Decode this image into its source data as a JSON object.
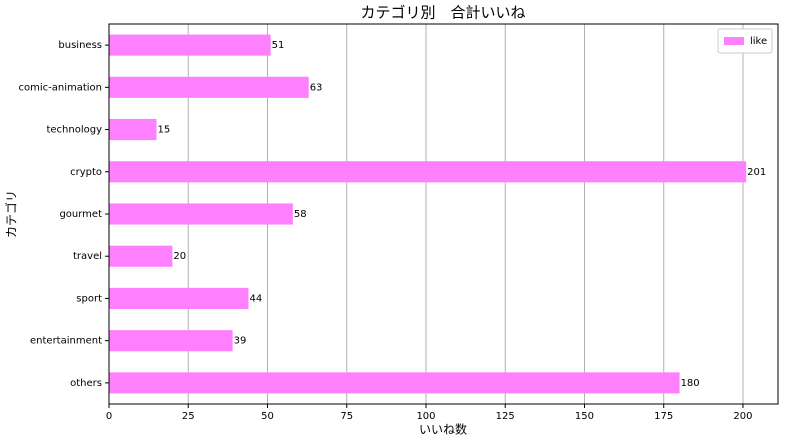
{
  "chart_data": {
    "type": "barh",
    "title": "カテゴリ別　合計いいね",
    "xlabel": "いいね数",
    "ylabel": "カテゴリ",
    "categories": [
      "business",
      "comic-animation",
      "technology",
      "crypto",
      "gourmet",
      "travel",
      "sport",
      "entertainment",
      "others"
    ],
    "series": [
      {
        "name": "like",
        "color": "#ff80ff",
        "values": [
          51,
          63,
          15,
          201,
          58,
          20,
          44,
          39,
          180
        ]
      }
    ],
    "xlim": [
      0,
      211.05
    ],
    "xticks": [
      0,
      25,
      50,
      75,
      100,
      125,
      150,
      175,
      200
    ],
    "grid": true,
    "legend": "upper right"
  }
}
